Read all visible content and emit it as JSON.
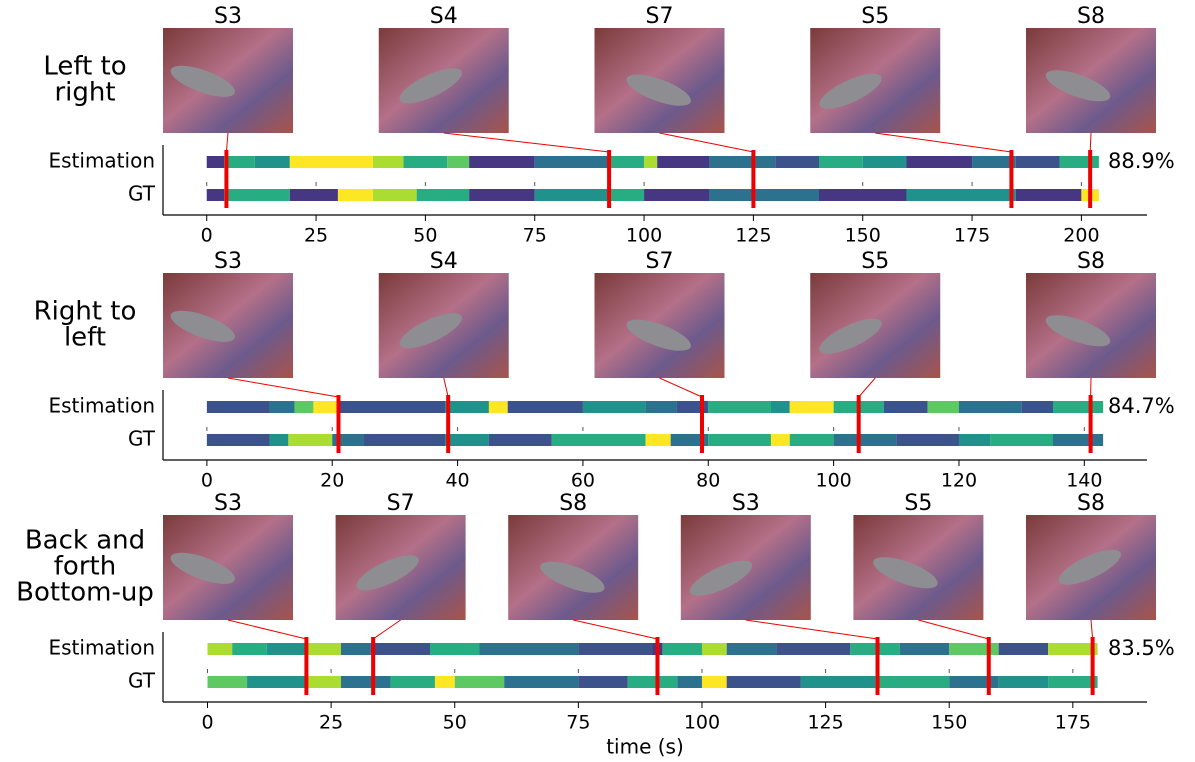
{
  "state_colors": [
    "#453781",
    "#3b528b",
    "#2c728e",
    "#21918c",
    "#27ad81",
    "#5ec962",
    "#aadc32",
    "#fde725"
  ],
  "chart_data": [
    {
      "type": "timeline",
      "title": [
        "Left to",
        "right"
      ],
      "frames": {
        "labels": [
          "S3",
          "S4",
          "S7",
          "S5",
          "S8"
        ],
        "times": [
          4.5,
          92,
          125,
          184,
          202
        ]
      },
      "rows": [
        {
          "name": "Estimation",
          "x": [
            0,
            4,
            11,
            19,
            38,
            45,
            55,
            60,
            75,
            92,
            100,
            103,
            115,
            130,
            140,
            150,
            160,
            175,
            185,
            195,
            204
          ],
          "states": [
            0,
            4,
            3,
            7,
            6,
            4,
            5,
            0,
            2,
            4,
            6,
            0,
            2,
            1,
            4,
            3,
            0,
            2,
            1,
            4
          ]
        },
        {
          "name": "GT",
          "x": [
            0,
            4,
            19,
            30,
            38,
            48,
            60,
            75,
            92,
            100,
            115,
            140,
            160,
            185,
            200,
            204
          ],
          "states": [
            0,
            4,
            0,
            7,
            6,
            4,
            0,
            3,
            4,
            0,
            2,
            0,
            3,
            0,
            7
          ]
        }
      ],
      "accuracy": "88.9%",
      "xlim": [
        -10,
        215
      ],
      "xticks": [
        0,
        25,
        50,
        75,
        100,
        125,
        150,
        175,
        200
      ]
    },
    {
      "type": "timeline",
      "title": [
        "Right to",
        "left"
      ],
      "frames": {
        "labels": [
          "S3",
          "S4",
          "S7",
          "S5",
          "S8"
        ],
        "times": [
          21,
          38.5,
          79,
          104,
          141
        ]
      },
      "rows": [
        {
          "name": "Estimation",
          "x": [
            0,
            10,
            14,
            17,
            21,
            38,
            45,
            48,
            60,
            70,
            75,
            80,
            90,
            93,
            100,
            108,
            115,
            120,
            130,
            135,
            143
          ],
          "states": [
            1,
            2,
            5,
            7,
            1,
            3,
            7,
            1,
            3,
            2,
            1,
            4,
            3,
            7,
            4,
            1,
            5,
            2,
            1,
            4
          ]
        },
        {
          "name": "GT",
          "x": [
            0,
            10,
            13,
            20,
            25,
            38,
            45,
            55,
            70,
            74,
            80,
            90,
            93,
            100,
            110,
            120,
            125,
            135,
            143
          ],
          "states": [
            1,
            3,
            6,
            2,
            1,
            3,
            1,
            4,
            7,
            2,
            4,
            7,
            4,
            2,
            1,
            3,
            4,
            2
          ]
        }
      ],
      "accuracy": "84.7%",
      "xlim": [
        -7,
        150
      ],
      "xticks": [
        0,
        20,
        40,
        60,
        80,
        100,
        120,
        140
      ]
    },
    {
      "type": "timeline",
      "title": [
        "Back and",
        "forth",
        "Bottom-up"
      ],
      "frames": {
        "labels": [
          "S3",
          "S7",
          "S8",
          "S3",
          "S5",
          "S8"
        ],
        "times": [
          20,
          33.5,
          91,
          135.5,
          158,
          179
        ]
      },
      "rows": [
        {
          "name": "Estimation",
          "x": [
            0,
            5,
            12,
            20,
            27,
            33,
            45,
            55,
            75,
            90,
            92,
            100,
            105,
            115,
            130,
            140,
            150,
            160,
            170,
            180
          ],
          "states": [
            6,
            4,
            3,
            6,
            2,
            1,
            4,
            2,
            1,
            0,
            4,
            6,
            2,
            1,
            4,
            2,
            5,
            1,
            6
          ]
        },
        {
          "name": "GT",
          "x": [
            0,
            8,
            20,
            27,
            37,
            46,
            50,
            60,
            75,
            85,
            95,
            100,
            105,
            120,
            135,
            150,
            160,
            170,
            180
          ],
          "states": [
            5,
            3,
            6,
            2,
            4,
            7,
            5,
            2,
            1,
            4,
            2,
            7,
            1,
            3,
            4,
            2,
            3,
            4
          ]
        }
      ],
      "accuracy": "83.5%",
      "xlim": [
        -9,
        190
      ],
      "xticks": [
        0,
        25,
        50,
        75,
        100,
        125,
        150,
        175
      ],
      "xlabel": "time (s)"
    }
  ]
}
